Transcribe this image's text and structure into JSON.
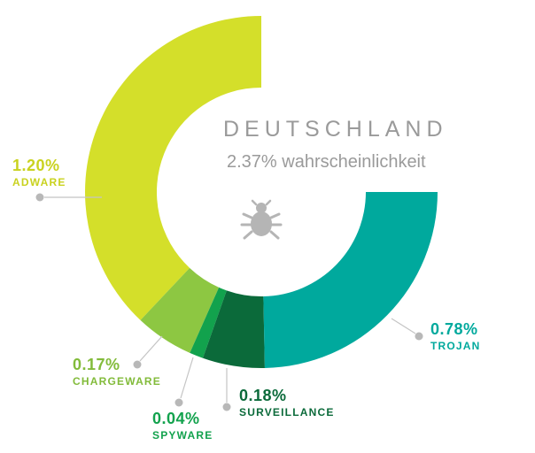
{
  "chart_data": {
    "type": "pie",
    "title": "DEUTSCHLAND",
    "subtitle": "2.37% wahrscheinlichkeit",
    "unit": "%",
    "start_angle_deg": 270,
    "sweep_deg": 270,
    "slices": [
      {
        "name": "ADWARE",
        "value": 1.2,
        "value_label": "1.20%",
        "color": "#d4df2a"
      },
      {
        "name": "CHARGEWARE",
        "value": 0.17,
        "value_label": "0.17%",
        "color": "#8dc742"
      },
      {
        "name": "SPYWARE",
        "value": 0.04,
        "value_label": "0.04%",
        "color": "#12a24d"
      },
      {
        "name": "SURVEILLANCE",
        "value": 0.18,
        "value_label": "0.18%",
        "color": "#0b6a3a"
      },
      {
        "name": "TROJAN",
        "value": 0.78,
        "value_label": "0.78%",
        "color": "#00a99d"
      }
    ]
  },
  "icons": {
    "center_icon": "bug-icon"
  },
  "colors": {
    "heading_text": "#9a9a9a",
    "leader_dot": "#b8b8b8"
  }
}
